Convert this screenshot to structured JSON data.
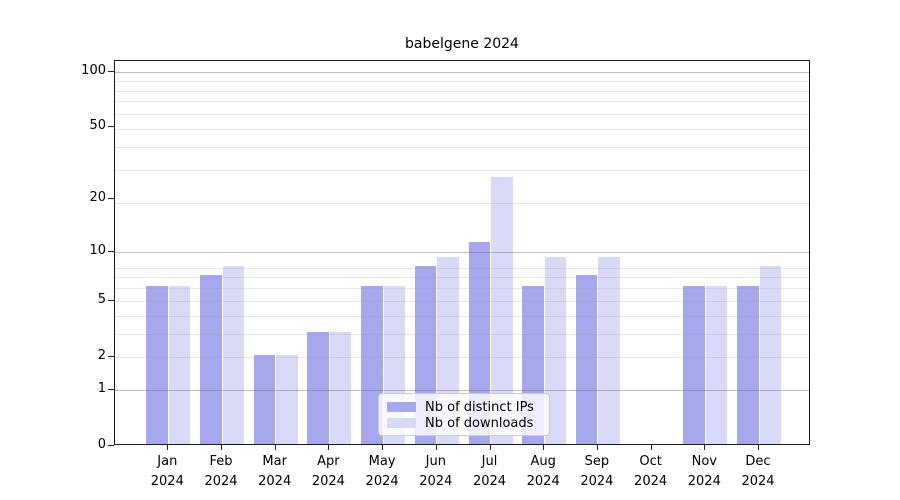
{
  "title": "babelgene 2024",
  "chart_data": {
    "type": "bar",
    "title": "babelgene 2024",
    "categories": [
      "Jan 2024",
      "Feb 2024",
      "Mar 2024",
      "Apr 2024",
      "May 2024",
      "Jun 2024",
      "Jul 2024",
      "Aug 2024",
      "Sep 2024",
      "Oct 2024",
      "Nov 2024",
      "Dec 2024"
    ],
    "series": [
      {
        "name": "Nb of distinct IPs",
        "color": "#a7a7ee",
        "values": [
          6,
          7,
          2,
          3,
          6,
          8,
          11,
          6,
          7,
          0,
          6,
          6
        ]
      },
      {
        "name": "Nb of downloads",
        "color": "#d9d9f8",
        "values": [
          6,
          8,
          2,
          3,
          6,
          9,
          26,
          9,
          9,
          0,
          6,
          8
        ]
      }
    ],
    "xlabel": "",
    "ylabel": "",
    "y_scale": "log10(1+value)",
    "y_ticks": [
      100,
      50,
      20,
      10,
      5,
      2,
      1,
      0
    ],
    "y_major_gridlines": [
      1,
      10,
      100
    ],
    "y_minor_gridlines": [
      2,
      3,
      4,
      5,
      6,
      7,
      8,
      19,
      29,
      39,
      49,
      59,
      69,
      79,
      89
    ],
    "ylim": [
      0,
      113
    ],
    "grid": true,
    "legend_position": "lower center"
  }
}
